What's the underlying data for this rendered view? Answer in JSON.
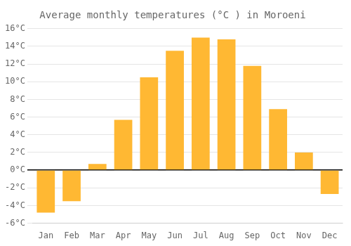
{
  "chart_data": {
    "type": "bar",
    "title": "Average monthly temperatures (°C ) in Moroeni",
    "categories": [
      "Jan",
      "Feb",
      "Mar",
      "Apr",
      "May",
      "Jun",
      "Jul",
      "Aug",
      "Sep",
      "Oct",
      "Nov",
      "Dec"
    ],
    "values": [
      -4.8,
      -3.5,
      0.7,
      5.7,
      10.5,
      13.5,
      15.0,
      14.8,
      11.8,
      6.9,
      2.0,
      -2.7
    ],
    "color": "#FFB833",
    "ylim": [
      -6,
      16
    ],
    "yticks": [
      {
        "value": -6,
        "label": "-6°C"
      },
      {
        "value": -4,
        "label": "-4°C"
      },
      {
        "value": -2,
        "label": "-2°C"
      },
      {
        "value": 0,
        "label": "0°C"
      },
      {
        "value": 2,
        "label": "2°C"
      },
      {
        "value": 4,
        "label": "4°C"
      },
      {
        "value": 6,
        "label": "6°C"
      },
      {
        "value": 8,
        "label": "8°C"
      },
      {
        "value": 10,
        "label": "10°C"
      },
      {
        "value": 12,
        "label": "12°C"
      },
      {
        "value": 14,
        "label": "14°C"
      },
      {
        "value": 16,
        "label": "16°C"
      }
    ],
    "grid": true
  }
}
